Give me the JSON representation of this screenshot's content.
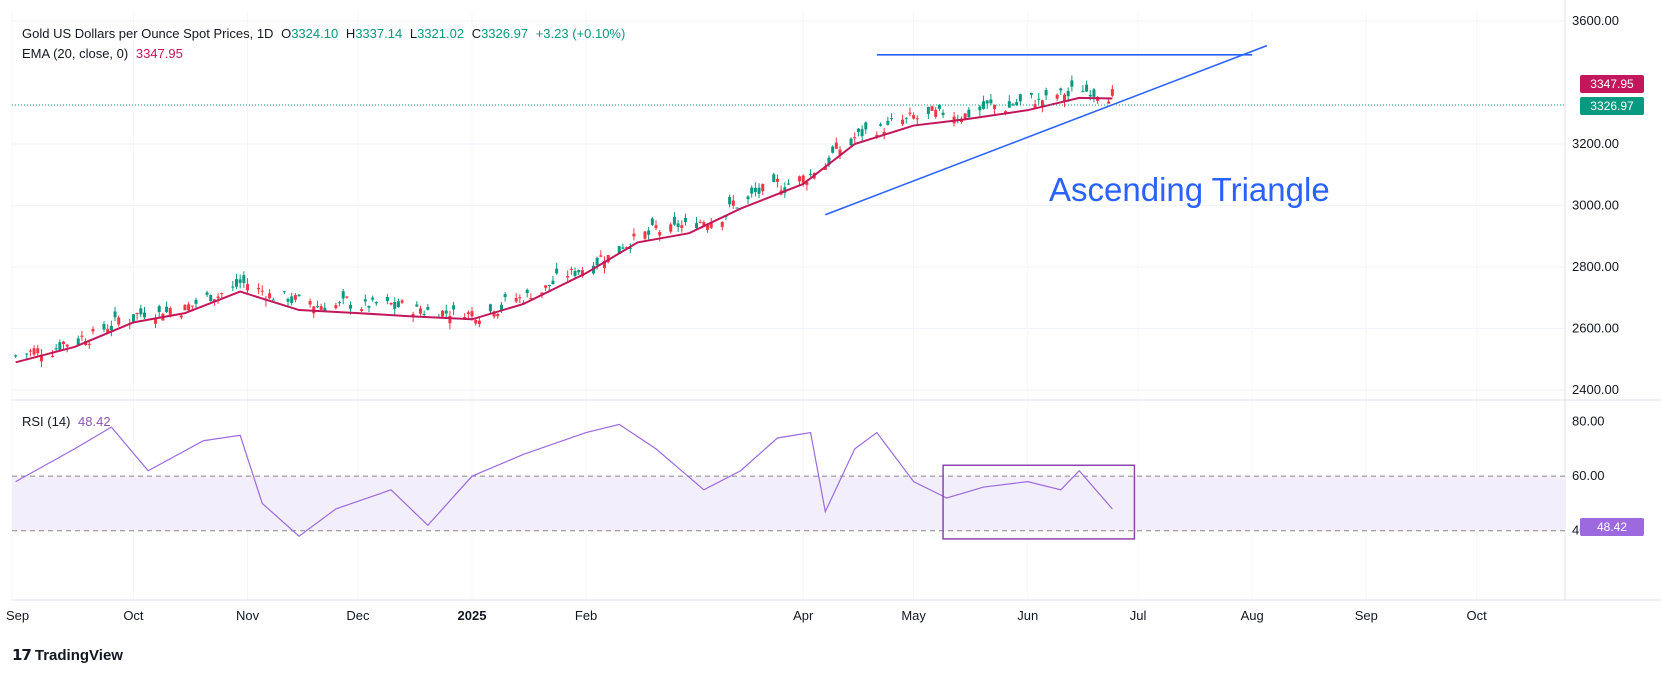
{
  "header": {
    "symbol": "Gold US Dollars per Ounce Spot Prices, 1D",
    "o_label": "O",
    "o_value": "3324.10",
    "h_label": "H",
    "h_value": "3337.14",
    "l_label": "L",
    "l_value": "3321.02",
    "c_label": "C",
    "c_value": "3326.97",
    "change": "+3.23 (+0.10%)",
    "ema_label": "EMA (20, close, 0)",
    "ema_value": "3347.95"
  },
  "rsi_header": {
    "label": "RSI (14)",
    "value": "48.42"
  },
  "annotation": "Ascending Triangle",
  "branding": "TradingView",
  "colors": {
    "up": "#089981",
    "down": "#f23645",
    "ema": "#c2185b",
    "rsi": "#9c6ade",
    "trendline": "#2962ff",
    "box": "#8e44ad"
  },
  "chart_data": [
    {
      "type": "candlestick",
      "title": "Gold US Dollars per Ounce Spot Prices, 1D",
      "ylim": [
        2400,
        3600
      ],
      "yticks": [
        "3600.00",
        "3200.00",
        "3000.00",
        "2800.00",
        "2600.00",
        "2400.00"
      ],
      "xticks": [
        "Sep",
        "Oct",
        "Nov",
        "Dec",
        "2025",
        "Feb",
        "Apr",
        "May",
        "Jun",
        "Jul",
        "Aug",
        "Sep",
        "Oct"
      ],
      "price_labels": {
        "ema": "3347.95",
        "close": "3326.97"
      },
      "series": [
        {
          "name": "EMA (20, close, 0)",
          "x": [
            "2024-08-30",
            "2024-09-15",
            "2024-10-01",
            "2024-10-15",
            "2024-10-30",
            "2024-11-15",
            "2024-12-01",
            "2024-12-15",
            "2025-01-01",
            "2025-01-15",
            "2025-02-01",
            "2025-02-15",
            "2025-03-01",
            "2025-03-15",
            "2025-04-01",
            "2025-04-15",
            "2025-05-01",
            "2025-05-15",
            "2025-06-01",
            "2025-06-15",
            "2025-06-24"
          ],
          "values": [
            2490,
            2540,
            2620,
            2650,
            2720,
            2660,
            2650,
            2640,
            2630,
            2680,
            2780,
            2880,
            2910,
            2990,
            3070,
            3200,
            3260,
            3280,
            3310,
            3350,
            3348
          ]
        },
        {
          "name": "Ascending Triangle resistance",
          "x": [
            "2025-04-21",
            "2025-08-01"
          ],
          "values": [
            3490,
            3490
          ]
        },
        {
          "name": "Ascending Triangle support",
          "x": [
            "2025-04-07",
            "2025-08-05"
          ],
          "values": [
            2970,
            3520
          ]
        }
      ]
    },
    {
      "type": "line",
      "title": "RSI (14)",
      "ylim": [
        25,
        85
      ],
      "yticks": [
        "80.00",
        "60.00",
        "40.00"
      ],
      "band": [
        40,
        60
      ],
      "price_label": "48.42",
      "series": [
        {
          "name": "RSI (14)",
          "x": [
            "2024-08-30",
            "2024-09-15",
            "2024-09-25",
            "2024-10-05",
            "2024-10-20",
            "2024-10-30",
            "2024-11-05",
            "2024-11-15",
            "2024-11-25",
            "2024-12-10",
            "2024-12-20",
            "2025-01-01",
            "2025-01-15",
            "2025-02-01",
            "2025-02-10",
            "2025-02-20",
            "2025-03-05",
            "2025-03-15",
            "2025-03-25",
            "2025-04-03",
            "2025-04-07",
            "2025-04-15",
            "2025-04-21",
            "2025-05-01",
            "2025-05-10",
            "2025-05-20",
            "2025-06-01",
            "2025-06-10",
            "2025-06-15",
            "2025-06-24"
          ],
          "values": [
            58,
            70,
            78,
            62,
            73,
            75,
            50,
            38,
            48,
            55,
            42,
            60,
            68,
            76,
            79,
            70,
            55,
            62,
            74,
            76,
            47,
            70,
            76,
            58,
            52,
            56,
            58,
            55,
            62,
            48
          ]
        }
      ],
      "annotation_box": {
        "x": [
          "2025-05-09",
          "2025-06-30"
        ],
        "y": [
          37,
          64
        ]
      }
    }
  ]
}
